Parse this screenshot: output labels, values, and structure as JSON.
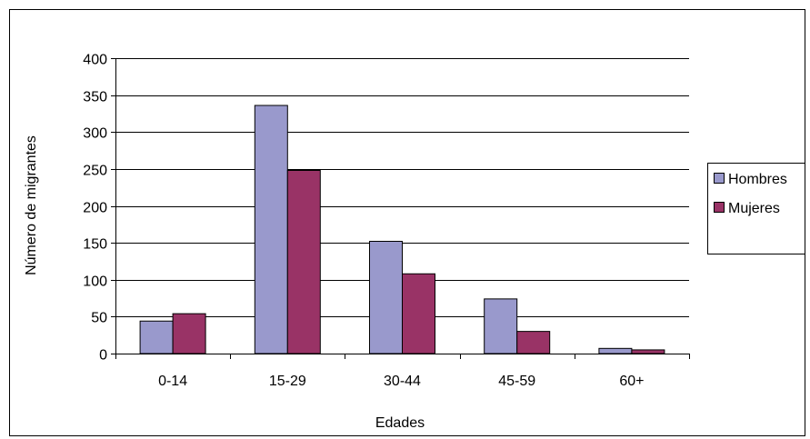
{
  "chart_data": {
    "type": "bar",
    "title": "",
    "xlabel": "Edades",
    "ylabel": "Número de migrantes",
    "categories": [
      "0-14",
      "15-29",
      "30-44",
      "45-59",
      "60+"
    ],
    "series": [
      {
        "name": "Hombres",
        "values": [
          44,
          336,
          152,
          74,
          7
        ],
        "color": "#9999cc"
      },
      {
        "name": "Mujeres",
        "values": [
          54,
          248,
          108,
          30,
          5
        ],
        "color": "#993366"
      }
    ],
    "ylim": [
      0,
      400
    ],
    "yticks": [
      0,
      50,
      100,
      150,
      200,
      250,
      300,
      350,
      400
    ],
    "grid": true,
    "legend": "right"
  }
}
